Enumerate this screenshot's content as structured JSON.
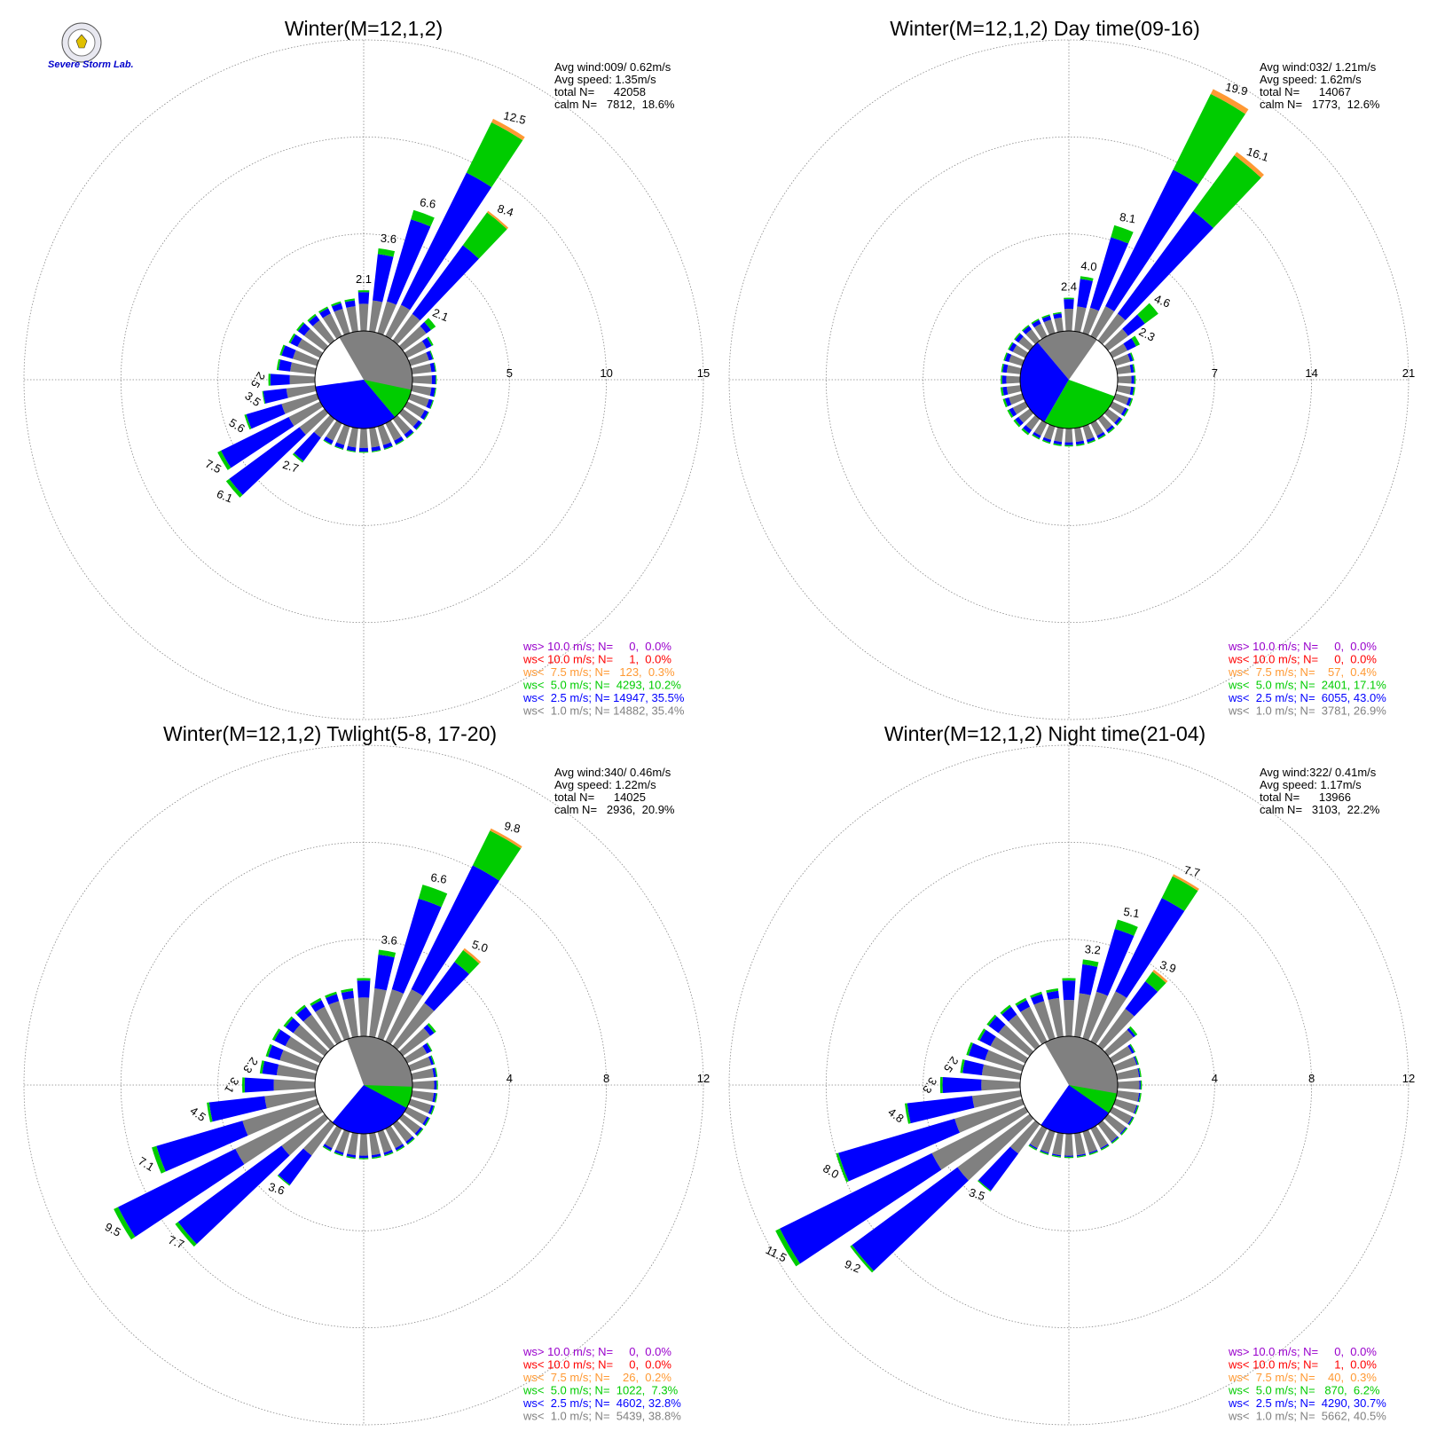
{
  "colors": {
    "ws_gt10": "#9900cc",
    "ws_lt10": "#ff0000",
    "ws_lt75": "#ff9933",
    "ws_lt5": "#00cc00",
    "ws_lt25": "#0000ff",
    "ws_lt1": "#808080",
    "grid": "#888888"
  },
  "logo": {
    "icon": "severe-storm-lab-emblem-icon",
    "text": "Severe Storm Lab."
  },
  "legend_template_note": "",
  "chart_data": [
    {
      "type": "wind-rose",
      "title": "Winter(M=12,1,2)",
      "stats": [
        "Avg wind:009/ 0.62m/s",
        "Avg speed: 1.35m/s",
        "total N=      42058",
        "calm N=   7812,  18.6%"
      ],
      "rmax": 15,
      "ring_ticks": [
        "5",
        "10",
        "15"
      ],
      "legend": [
        {
          "key": "ws_gt10",
          "text": "ws> 10.0 m/s; N=     0,  0.0%"
        },
        {
          "key": "ws_lt10",
          "text": "ws< 10.0 m/s; N=     1,  0.0%"
        },
        {
          "key": "ws_lt75",
          "text": "ws<  7.5 m/s; N=   123,  0.3%"
        },
        {
          "key": "ws_lt5",
          "text": "ws<  5.0 m/s; N=  4293, 10.2%"
        },
        {
          "key": "ws_lt25",
          "text": "ws<  2.5 m/s; N= 14947, 35.5%"
        },
        {
          "key": "ws_lt1",
          "text": "ws<  1.0 m/s; N= 14882, 35.4%"
        }
      ],
      "directions_deg": [
        0,
        10,
        20,
        30,
        40,
        50,
        60,
        70,
        80,
        90,
        100,
        110,
        120,
        130,
        140,
        150,
        160,
        170,
        180,
        190,
        200,
        210,
        220,
        230,
        240,
        250,
        260,
        270,
        280,
        290,
        300,
        310,
        320,
        330,
        340,
        350
      ],
      "series": {
        "ws_lt1": [
          1.4,
          1.6,
          1.7,
          1.8,
          1.7,
          1.5,
          1.1,
          1.0,
          1.0,
          1.0,
          1.0,
          1.0,
          1.0,
          1.0,
          1.0,
          1.0,
          1.0,
          1.0,
          1.0,
          1.0,
          1.0,
          1.0,
          1.2,
          1.6,
          1.8,
          1.9,
          1.5,
          1.3,
          1.3,
          1.3,
          1.3,
          1.3,
          1.3,
          1.3,
          1.3,
          1.3
        ],
        "ws_lt25": [
          0.6,
          2.4,
          4.4,
          7.6,
          4.4,
          0.3,
          0.3,
          0.2,
          0.2,
          0.2,
          0.2,
          0.2,
          0.2,
          0.2,
          0.2,
          0.2,
          0.2,
          0.2,
          0.2,
          0.2,
          0.2,
          0.2,
          1.5,
          4.5,
          3.9,
          1.9,
          1.2,
          1.0,
          0.6,
          0.6,
          0.4,
          0.4,
          0.3,
          0.3,
          0.3,
          0.3
        ],
        "ws_lt5": [
          0.1,
          0.3,
          0.5,
          2.9,
          2.1,
          0.3,
          0.1,
          0.05,
          0.05,
          0.05,
          0.05,
          0.05,
          0.05,
          0.05,
          0.05,
          0.05,
          0.05,
          0.05,
          0.05,
          0.05,
          0.05,
          0.05,
          0.1,
          0.2,
          0.2,
          0.1,
          0.05,
          0.1,
          0.1,
          0.1,
          0.1,
          0.1,
          0.1,
          0.1,
          0.1,
          0.1
        ],
        "ws_lt75": [
          0,
          0,
          0,
          0.2,
          0.1,
          0,
          0,
          0,
          0,
          0,
          0,
          0,
          0,
          0,
          0,
          0,
          0,
          0,
          0,
          0,
          0,
          0,
          0,
          0,
          0,
          0,
          0,
          0,
          0,
          0,
          0,
          0,
          0,
          0,
          0,
          0
        ]
      },
      "labels": [
        {
          "dir": 0,
          "text": "2.1"
        },
        {
          "dir": 10,
          "text": "3.6"
        },
        {
          "dir": 20,
          "text": "6.6"
        },
        {
          "dir": 30,
          "text": "12.5"
        },
        {
          "dir": 40,
          "text": "8.4"
        },
        {
          "dir": 50,
          "text": "2.1"
        },
        {
          "dir": 220,
          "text": "2.7"
        },
        {
          "dir": 230,
          "text": "6.1"
        },
        {
          "dir": 240,
          "text": "7.5"
        },
        {
          "dir": 250,
          "text": "5.6"
        },
        {
          "dir": 260,
          "text": "3.5"
        },
        {
          "dir": 270,
          "text": "2.5"
        }
      ],
      "calm_wedges": [
        {
          "key": "ws_lt1",
          "from": 330,
          "to": 500
        },
        {
          "key": "ws_lt25",
          "from": 140,
          "to": 262
        },
        {
          "key": "ws_lt5",
          "from": 102,
          "to": 140
        }
      ]
    },
    {
      "type": "wind-rose",
      "title": "Winter(M=12,1,2) Day time(09-16)",
      "stats": [
        "Avg wind:032/ 1.21m/s",
        "Avg speed: 1.62m/s",
        "total N=      14067",
        "calm N=   1773,  12.6%"
      ],
      "rmax": 21,
      "ring_ticks": [
        "7",
        "14",
        "21"
      ],
      "legend": [
        {
          "key": "ws_gt10",
          "text": "ws> 10.0 m/s; N=     0,  0.0%"
        },
        {
          "key": "ws_lt10",
          "text": "ws< 10.0 m/s; N=     0,  0.0%"
        },
        {
          "key": "ws_lt75",
          "text": "ws<  7.5 m/s; N=    57,  0.4%"
        },
        {
          "key": "ws_lt5",
          "text": "ws<  5.0 m/s; N=  2401, 17.1%"
        },
        {
          "key": "ws_lt25",
          "text": "ws<  2.5 m/s; N=  6055, 43.0%"
        },
        {
          "key": "ws_lt1",
          "text": "ws<  1.0 m/s; N=  3781, 26.9%"
        }
      ],
      "directions_deg": [
        0,
        10,
        20,
        30,
        40,
        50,
        60,
        70,
        80,
        90,
        100,
        110,
        120,
        130,
        140,
        150,
        160,
        170,
        180,
        190,
        200,
        210,
        220,
        230,
        240,
        250,
        260,
        270,
        280,
        290,
        300,
        310,
        320,
        330,
        340,
        350
      ],
      "series": {
        "ws_lt1": [
          1.6,
          1.8,
          1.9,
          2.4,
          2.4,
          1.8,
          1.2,
          1.1,
          1.0,
          1.0,
          1.0,
          1.0,
          1.0,
          1.0,
          1.0,
          1.0,
          1.0,
          1.0,
          1.0,
          1.0,
          1.0,
          1.0,
          1.0,
          1.0,
          1.0,
          1.0,
          1.0,
          1.0,
          1.0,
          1.0,
          1.0,
          1.0,
          1.0,
          1.0,
          1.0,
          1.0
        ],
        "ws_lt25": [
          0.7,
          2.0,
          5.3,
          11.0,
          9.2,
          1.5,
          0.7,
          0.2,
          0.2,
          0.2,
          0.2,
          0.2,
          0.2,
          0.2,
          0.2,
          0.2,
          0.2,
          0.2,
          0.2,
          0.2,
          0.2,
          0.2,
          0.3,
          0.3,
          0.3,
          0.3,
          0.3,
          0.3,
          0.3,
          0.3,
          0.3,
          0.3,
          0.3,
          0.3,
          0.3,
          0.3
        ],
        "ws_lt5": [
          0.1,
          0.2,
          0.9,
          6.1,
          5.0,
          1.2,
          0.3,
          0.1,
          0.1,
          0.1,
          0.1,
          0.1,
          0.1,
          0.1,
          0.1,
          0.1,
          0.1,
          0.1,
          0.1,
          0.1,
          0.1,
          0.1,
          0.15,
          0.15,
          0.15,
          0.15,
          0.15,
          0.1,
          0.1,
          0.1,
          0.1,
          0.1,
          0.1,
          0.1,
          0.1,
          0.1
        ],
        "ws_lt75": [
          0,
          0,
          0,
          0.4,
          0.3,
          0,
          0,
          0,
          0,
          0,
          0,
          0,
          0,
          0,
          0,
          0,
          0,
          0,
          0,
          0,
          0,
          0,
          0,
          0,
          0,
          0,
          0,
          0,
          0,
          0,
          0,
          0,
          0,
          0,
          0,
          0
        ]
      },
      "labels": [
        {
          "dir": 0,
          "text": "2.4"
        },
        {
          "dir": 10,
          "text": "4.0"
        },
        {
          "dir": 20,
          "text": "8.1"
        },
        {
          "dir": 30,
          "text": "19.9"
        },
        {
          "dir": 40,
          "text": "16.1"
        },
        {
          "dir": 50,
          "text": "4.6"
        },
        {
          "dir": 60,
          "text": "2.3"
        }
      ],
      "calm_wedges": [
        {
          "key": "ws_lt1",
          "from": 320,
          "to": 395
        },
        {
          "key": "ws_lt25",
          "from": 210,
          "to": 320
        },
        {
          "key": "ws_lt5",
          "from": 110,
          "to": 210
        }
      ]
    },
    {
      "type": "wind-rose",
      "title": "Winter(M=12,1,2) Twlight(5-8, 17-20)",
      "stats": [
        "Avg wind:340/ 0.46m/s",
        "Avg speed: 1.22m/s",
        "total N=      14025",
        "calm N=   2936,  20.9%"
      ],
      "rmax": 12,
      "ring_ticks": [
        "4",
        "8",
        "12"
      ],
      "legend": [
        {
          "key": "ws_gt10",
          "text": "ws> 10.0 m/s; N=     0,  0.0%"
        },
        {
          "key": "ws_lt10",
          "text": "ws< 10.0 m/s; N=     0,  0.0%"
        },
        {
          "key": "ws_lt75",
          "text": "ws<  7.5 m/s; N=    26,  0.2%"
        },
        {
          "key": "ws_lt5",
          "text": "ws<  5.0 m/s; N=  1022,  7.3%"
        },
        {
          "key": "ws_lt25",
          "text": "ws<  2.5 m/s; N=  4602, 32.8%"
        },
        {
          "key": "ws_lt1",
          "text": "ws<  1.0 m/s; N=  5439, 38.8%"
        }
      ],
      "directions_deg": [
        0,
        10,
        20,
        30,
        40,
        50,
        60,
        70,
        80,
        90,
        100,
        110,
        120,
        130,
        140,
        150,
        160,
        170,
        180,
        190,
        200,
        210,
        220,
        230,
        240,
        250,
        260,
        270,
        280,
        290,
        300,
        310,
        320,
        330,
        340,
        350
      ],
      "series": {
        "ws_lt1": [
          1.6,
          2.0,
          2.1,
          2.4,
          2.2,
          1.4,
          0.9,
          0.9,
          0.9,
          0.9,
          0.9,
          0.9,
          0.9,
          0.9,
          0.9,
          0.9,
          0.9,
          0.9,
          0.9,
          0.9,
          0.9,
          0.9,
          1.6,
          2.2,
          3.9,
          3.2,
          2.1,
          1.7,
          1.6,
          1.6,
          1.6,
          1.6,
          1.6,
          1.6,
          1.6,
          1.6
        ],
        "ws_lt25": [
          0.7,
          1.4,
          3.9,
          5.7,
          2.1,
          0.2,
          0.2,
          0.1,
          0.1,
          0.1,
          0.1,
          0.1,
          0.1,
          0.1,
          0.1,
          0.1,
          0.1,
          0.1,
          0.1,
          0.1,
          0.1,
          0.1,
          1.5,
          5.3,
          5.4,
          3.7,
          2.3,
          1.2,
          0.6,
          0.5,
          0.5,
          0.4,
          0.4,
          0.3,
          0.3,
          0.3
        ],
        "ws_lt5": [
          0.1,
          0.2,
          0.6,
          1.6,
          0.6,
          0.1,
          0.05,
          0.05,
          0.05,
          0.05,
          0.05,
          0.05,
          0.05,
          0.05,
          0.05,
          0.05,
          0.05,
          0.05,
          0.05,
          0.05,
          0.05,
          0.05,
          0.05,
          0.15,
          0.2,
          0.2,
          0.1,
          0.1,
          0.1,
          0.1,
          0.1,
          0.1,
          0.1,
          0.1,
          0.1,
          0.1
        ],
        "ws_lt75": [
          0,
          0,
          0,
          0.1,
          0.1,
          0,
          0,
          0,
          0,
          0,
          0,
          0,
          0,
          0,
          0,
          0,
          0,
          0,
          0,
          0,
          0,
          0,
          0,
          0,
          0,
          0,
          0,
          0,
          0,
          0,
          0,
          0,
          0,
          0,
          0,
          0
        ]
      },
      "labels": [
        {
          "dir": 10,
          "text": "3.6"
        },
        {
          "dir": 20,
          "text": "6.6"
        },
        {
          "dir": 30,
          "text": "9.8"
        },
        {
          "dir": 40,
          "text": "5.0"
        },
        {
          "dir": 220,
          "text": "3.6"
        },
        {
          "dir": 230,
          "text": "7.7"
        },
        {
          "dir": 240,
          "text": "9.5"
        },
        {
          "dir": 250,
          "text": "7.1"
        },
        {
          "dir": 260,
          "text": "4.5"
        },
        {
          "dir": 270,
          "text": "3.1"
        },
        {
          "dir": 280,
          "text": "2.3"
        }
      ],
      "calm_wedges": [
        {
          "key": "ws_lt1",
          "from": 340,
          "to": 500
        },
        {
          "key": "ws_lt25",
          "from": 118,
          "to": 220
        },
        {
          "key": "ws_lt5",
          "from": 92,
          "to": 118
        }
      ]
    },
    {
      "type": "wind-rose",
      "title": "Winter(M=12,1,2) Night time(21-04)",
      "stats": [
        "Avg wind:322/ 0.41m/s",
        "Avg speed: 1.17m/s",
        "total N=      13966",
        "calm N=   3103,  22.2%"
      ],
      "rmax": 12,
      "ring_ticks": [
        "4",
        "8",
        "12"
      ],
      "legend": [
        {
          "key": "ws_gt10",
          "text": "ws> 10.0 m/s; N=     0,  0.0%"
        },
        {
          "key": "ws_lt10",
          "text": "ws< 10.0 m/s; N=     1,  0.0%"
        },
        {
          "key": "ws_lt75",
          "text": "ws<  7.5 m/s; N=    40,  0.3%"
        },
        {
          "key": "ws_lt5",
          "text": "ws<  5.0 m/s; N=   870,  6.2%"
        },
        {
          "key": "ws_lt25",
          "text": "ws<  2.5 m/s; N=  4290, 30.7%"
        },
        {
          "key": "ws_lt1",
          "text": "ws<  1.0 m/s; N=  5662, 40.5%"
        }
      ],
      "directions_deg": [
        0,
        10,
        20,
        30,
        40,
        50,
        60,
        70,
        80,
        90,
        100,
        110,
        120,
        130,
        140,
        150,
        160,
        170,
        180,
        190,
        200,
        210,
        220,
        230,
        240,
        250,
        260,
        270,
        280,
        290,
        300,
        310,
        320,
        330,
        340,
        350
      ],
      "series": {
        "ws_lt1": [
          1.5,
          1.8,
          2.0,
          2.3,
          1.9,
          1.3,
          0.9,
          0.9,
          0.9,
          0.9,
          0.9,
          0.9,
          0.9,
          0.9,
          0.9,
          0.9,
          0.9,
          0.9,
          0.9,
          0.9,
          0.9,
          0.9,
          1.5,
          3.7,
          4.3,
          2.9,
          2.0,
          1.6,
          1.6,
          1.6,
          1.6,
          1.6,
          1.6,
          1.6,
          1.6,
          1.6
        ],
        "ws_lt25": [
          0.8,
          1.2,
          2.7,
          4.3,
          1.4,
          0.1,
          0.1,
          0.05,
          0.05,
          0.05,
          0.05,
          0.05,
          0.05,
          0.05,
          0.05,
          0.05,
          0.05,
          0.05,
          0.05,
          0.05,
          0.05,
          0.05,
          1.9,
          5.4,
          7.0,
          5.0,
          2.7,
          1.6,
          0.8,
          0.7,
          0.5,
          0.5,
          0.4,
          0.3,
          0.3,
          0.3
        ],
        "ws_lt5": [
          0.1,
          0.2,
          0.4,
          1.0,
          0.5,
          0.1,
          0.05,
          0.05,
          0.05,
          0.05,
          0.05,
          0.05,
          0.05,
          0.05,
          0.05,
          0.05,
          0.05,
          0.05,
          0.05,
          0.05,
          0.05,
          0.05,
          0.05,
          0.1,
          0.2,
          0.1,
          0.1,
          0.1,
          0.1,
          0.1,
          0.1,
          0.1,
          0.1,
          0.1,
          0.1,
          0.1
        ],
        "ws_lt75": [
          0,
          0,
          0,
          0.1,
          0.1,
          0,
          0,
          0,
          0,
          0,
          0,
          0,
          0,
          0,
          0,
          0,
          0,
          0,
          0,
          0,
          0,
          0,
          0,
          0,
          0,
          0,
          0,
          0,
          0,
          0,
          0,
          0,
          0,
          0,
          0,
          0
        ]
      },
      "labels": [
        {
          "dir": 10,
          "text": "3.2"
        },
        {
          "dir": 20,
          "text": "5.1"
        },
        {
          "dir": 30,
          "text": "7.7"
        },
        {
          "dir": 40,
          "text": "3.9"
        },
        {
          "dir": 220,
          "text": "3.5"
        },
        {
          "dir": 230,
          "text": "9.2"
        },
        {
          "dir": 240,
          "text": "11.5"
        },
        {
          "dir": 250,
          "text": "8.0"
        },
        {
          "dir": 260,
          "text": "4.8"
        },
        {
          "dir": 270,
          "text": "3.3"
        },
        {
          "dir": 280,
          "text": "2.5"
        }
      ],
      "calm_wedges": [
        {
          "key": "ws_lt1",
          "from": 330,
          "to": 505
        },
        {
          "key": "ws_lt25",
          "from": 125,
          "to": 215
        },
        {
          "key": "ws_lt5",
          "from": 100,
          "to": 125
        }
      ]
    }
  ]
}
